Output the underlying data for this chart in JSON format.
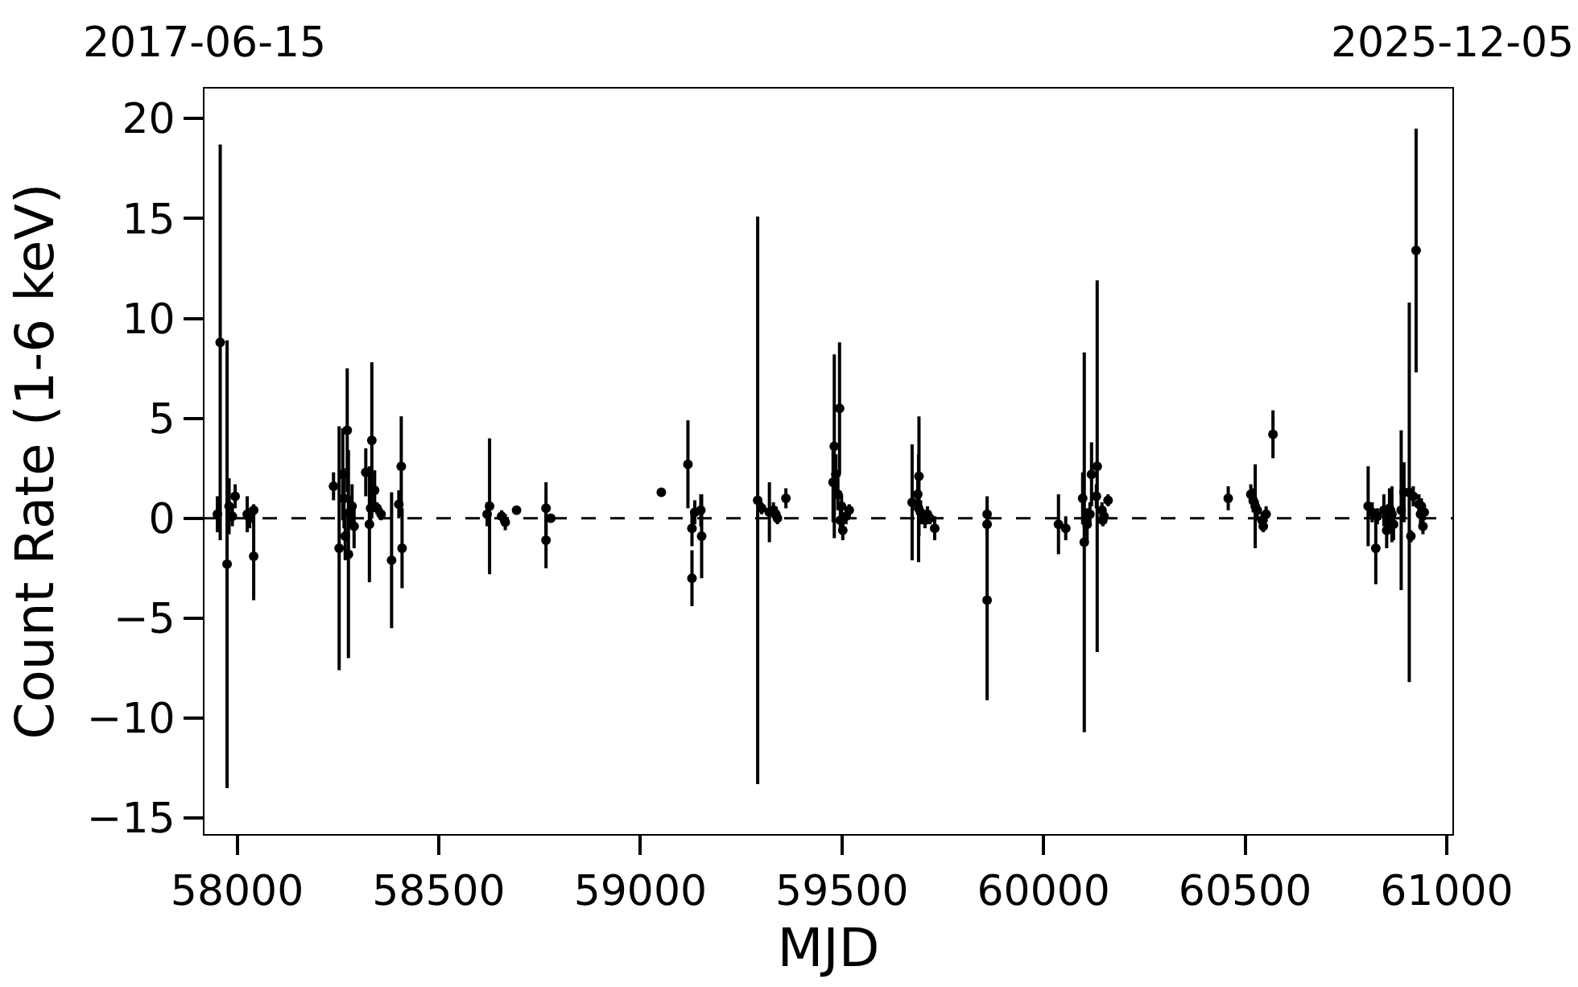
{
  "chart_data": {
    "type": "scatter",
    "xlabel": "MJD",
    "ylabel": "Count Rate (1-6 keV)",
    "color": "#000000",
    "marker": "circle",
    "x": [
      57951,
      57958,
      57975,
      57980,
      57988,
      57995,
      58025,
      58031,
      58041,
      58041,
      58239,
      58253,
      58262,
      58265,
      58268,
      58273,
      58276,
      58279,
      58285,
      58290,
      58319,
      58328,
      58331,
      58334,
      58341,
      58347,
      58357,
      58383,
      58401,
      58407,
      58409,
      58620,
      58626,
      58656,
      58665,
      58693,
      58766,
      58766,
      58778,
      59052,
      59118,
      59128,
      59128,
      59135,
      59150,
      59152,
      59291,
      59301,
      59320,
      59330,
      59336,
      59340,
      59361,
      59478,
      59481,
      59485,
      59490,
      59494,
      59496,
      59499,
      59502,
      59510,
      59518,
      59674,
      59688,
      59690,
      59691,
      59695,
      59706,
      59712,
      59718,
      59730,
      59860,
      59860,
      59860,
      60037,
      60055,
      60097,
      60101,
      60108,
      60115,
      60119,
      60131,
      60133,
      60145,
      60147,
      60150,
      60160,
      60458,
      60514,
      60520,
      60525,
      60530,
      60542,
      60545,
      60552,
      60569,
      60805,
      60815,
      60824,
      60828,
      60844,
      60851,
      60858,
      60864,
      60868,
      60887,
      60894,
      60907,
      60911,
      60917,
      60924,
      60931,
      60935,
      60937,
      60941,
      60944
    ],
    "values": [
      0.2,
      8.8,
      -2.3,
      0.6,
      0.1,
      1.1,
      0.2,
      0.0,
      0.4,
      -1.9,
      1.6,
      -1.5,
      2.2,
      1.0,
      -0.9,
      4.4,
      -1.8,
      0.3,
      0.6,
      -0.4,
      2.3,
      -0.3,
      0.5,
      3.9,
      1.4,
      0.5,
      0.2,
      -2.1,
      0.7,
      2.6,
      -1.5,
      0.2,
      0.6,
      0.1,
      -0.2,
      0.4,
      0.5,
      -1.1,
      0.0,
      1.3,
      2.7,
      -0.5,
      -3.0,
      0.3,
      0.4,
      -0.9,
      0.9,
      0.5,
      0.3,
      0.4,
      0.2,
      0.0,
      1.0,
      1.8,
      3.6,
      2.2,
      1.2,
      5.5,
      -0.1,
      0.6,
      -0.6,
      0.1,
      0.4,
      0.8,
      1.2,
      0.5,
      2.1,
      0.3,
      -0.1,
      0.2,
      0.0,
      -0.5,
      0.2,
      -0.3,
      -4.1,
      -0.3,
      -0.5,
      1.0,
      -1.2,
      -0.3,
      0.2,
      2.2,
      1.1,
      2.6,
      0.4,
      -0.1,
      0.1,
      0.9,
      1.0,
      1.2,
      0.9,
      0.6,
      0.4,
      -0.1,
      -0.4,
      0.2,
      4.2,
      0.6,
      0.3,
      -1.5,
      0.1,
      0.4,
      -0.6,
      0.5,
      0.2,
      -0.3,
      0.4,
      1.3,
      1.3,
      -0.9,
      1.1,
      13.4,
      0.7,
      0.2,
      0.6,
      -0.4,
      0.3
    ],
    "errors": [
      0.9,
      9.9,
      11.2,
      1.4,
      0.5,
      0.6,
      0.9,
      0.5,
      0.3,
      2.2,
      0.7,
      6.1,
      2.3,
      1.5,
      1.2,
      3.1,
      5.2,
      0.8,
      1.1,
      1.1,
      1.2,
      2.9,
      1.0,
      3.9,
      1.0,
      0.3,
      0.3,
      3.4,
      0.7,
      2.5,
      2.0,
      0.6,
      3.4,
      0.3,
      0.4,
      0.2,
      1.3,
      1.4,
      0.2,
      0.2,
      2.2,
      0.9,
      1.4,
      0.6,
      0.8,
      2.1,
      14.2,
      0.3,
      1.5,
      0.4,
      0.4,
      0.3,
      0.5,
      2.0,
      4.6,
      1.0,
      0.8,
      3.3,
      0.6,
      0.6,
      0.5,
      0.4,
      0.3,
      2.9,
      1.0,
      2.7,
      3.0,
      0.6,
      0.4,
      0.4,
      0.3,
      0.6,
      0.9,
      0.6,
      5.0,
      1.5,
      0.6,
      1.3,
      9.5,
      0.8,
      0.6,
      1.6,
      0.6,
      9.3,
      0.4,
      0.3,
      0.3,
      0.3,
      0.6,
      0.5,
      0.6,
      2.1,
      0.5,
      0.4,
      0.3,
      0.4,
      1.2,
      2.0,
      0.5,
      1.8,
      0.4,
      0.8,
      0.9,
      1.0,
      1.4,
      0.8,
      4.0,
      1.5,
      9.5,
      0.3,
      0.5,
      6.1,
      0.5,
      0.5,
      0.4,
      0.4,
      0.4
    ],
    "xlim": [
      57919,
      61014
    ],
    "xticks": [
      58000,
      58500,
      59000,
      59500,
      60000,
      60500,
      61000
    ],
    "ylim": [
      -15.8,
      21.5
    ],
    "yticks": [
      {
        "value": -15,
        "label": "−15"
      },
      {
        "value": -10,
        "label": "−10"
      },
      {
        "value": -5,
        "label": "−5"
      },
      0,
      5,
      10,
      15,
      20
    ],
    "x2lim": [
      "2017-06-15",
      "2025-12-05"
    ],
    "x2ticks": [
      "2017-06-15",
      "2025-12-05"
    ],
    "ref_lines": [
      {
        "axis": "y",
        "value": 0,
        "color": "#000000",
        "line_style": "dashed"
      }
    ],
    "grid": false
  }
}
